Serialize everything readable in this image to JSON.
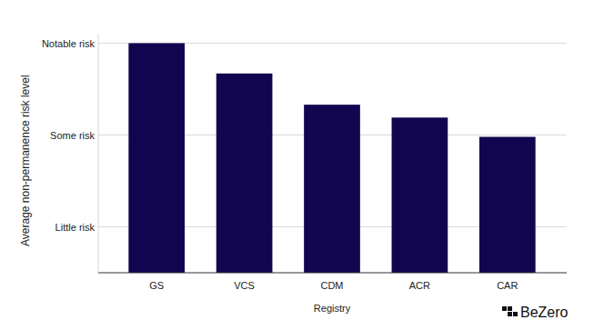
{
  "chart_data": {
    "type": "bar",
    "x_label": "Registry",
    "y_label": "Average non-permanence risk level",
    "categories": [
      "GS",
      "VCS",
      "CDM",
      "ACR",
      "CAR"
    ],
    "values": [
      3.0,
      2.67,
      2.33,
      2.19,
      1.98
    ],
    "color": "#12054f",
    "ylim": [
      0.5,
      3.1
    ],
    "yticks": [
      {
        "value": 1,
        "label": "Little risk"
      },
      {
        "value": 2,
        "label": "Some risk"
      },
      {
        "value": 3,
        "label": "Notable risk"
      }
    ],
    "grid": true,
    "annotations": [
      "BeZero"
    ]
  }
}
